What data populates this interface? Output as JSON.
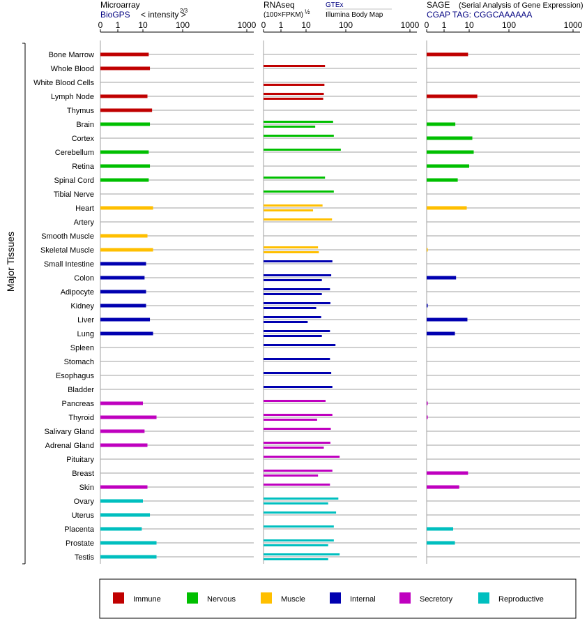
{
  "colors": {
    "Immune": "#c00000",
    "Nervous": "#00bf00",
    "Muscle": "#ffbf00",
    "Internal": "#0000b0",
    "Secretory": "#bf00bf",
    "Reproductive": "#00bfbf"
  },
  "chart_data": {
    "type": "bar",
    "y_axis_label": "Major Tissues",
    "categories": [
      "Bone Marrow",
      "Whole Blood",
      "White Blood Cells",
      "Lymph Node",
      "Thymus",
      "Brain",
      "Cortex",
      "Cerebellum",
      "Retina",
      "Spinal Cord",
      "Tibial Nerve",
      "Heart",
      "Artery",
      "Smooth Muscle",
      "Skeletal Muscle",
      "Small Intestine",
      "Colon",
      "Adipocyte",
      "Kidney",
      "Liver",
      "Lung",
      "Spleen",
      "Stomach",
      "Esophagus",
      "Bladder",
      "Pancreas",
      "Thyroid",
      "Salivary Gland",
      "Adrenal Gland",
      "Pituitary",
      "Breast",
      "Skin",
      "Ovary",
      "Uterus",
      "Placenta",
      "Prostate",
      "Testis"
    ],
    "groups": [
      "Immune",
      "Immune",
      "Immune",
      "Immune",
      "Immune",
      "Nervous",
      "Nervous",
      "Nervous",
      "Nervous",
      "Nervous",
      "Nervous",
      "Muscle",
      "Muscle",
      "Muscle",
      "Muscle",
      "Internal",
      "Internal",
      "Internal",
      "Internal",
      "Internal",
      "Internal",
      "Internal",
      "Internal",
      "Internal",
      "Internal",
      "Secretory",
      "Secretory",
      "Secretory",
      "Secretory",
      "Secretory",
      "Secretory",
      "Secretory",
      "Reproductive",
      "Reproductive",
      "Reproductive",
      "Reproductive",
      "Reproductive"
    ],
    "x_ticks": [
      "0",
      "1",
      "10",
      "100",
      "1000"
    ],
    "legend": [
      "Immune",
      "Nervous",
      "Muscle",
      "Internal",
      "Secretory",
      "Reproductive"
    ],
    "legend_position": "bottom",
    "panels": [
      {
        "title": "Microarray",
        "source": "BioGPS",
        "subtitle": "< intensity >",
        "exponent": "2/3",
        "values": [
          14,
          15,
          null,
          13,
          17,
          15,
          null,
          14,
          15,
          14,
          null,
          18,
          null,
          13,
          18,
          12,
          11,
          12,
          12,
          15,
          18,
          null,
          null,
          null,
          null,
          10,
          22,
          11,
          13,
          null,
          null,
          13,
          10,
          15,
          9,
          22,
          22
        ],
        "values2": []
      },
      {
        "title": "RNAseq",
        "unit": "(100×FPKM)",
        "exponent": "½",
        "source_a": "GTEx",
        "source_b": "Illumina Body Map",
        "values": [
          null,
          30,
          null,
          28,
          null,
          48,
          50,
          75,
          null,
          30,
          50,
          26,
          45,
          null,
          20,
          46,
          43,
          40,
          41,
          24,
          40,
          55,
          40,
          43,
          46,
          31,
          46,
          42,
          41,
          70,
          46,
          40,
          65,
          57,
          50,
          50,
          70
        ],
        "values2": [
          null,
          null,
          29,
          27,
          null,
          17,
          null,
          null,
          null,
          null,
          null,
          15,
          null,
          null,
          21,
          null,
          25,
          25,
          18,
          11,
          25,
          null,
          null,
          null,
          null,
          null,
          19,
          null,
          28,
          null,
          20,
          null,
          36,
          null,
          null,
          36,
          36
        ]
      },
      {
        "title": "SAGE",
        "subtitle": "(Serial Analysis of Gene Expression)",
        "source": "CGAP TAG: CGGCAAAAAA",
        "values": [
          9,
          null,
          null,
          16,
          null,
          2.8,
          12,
          13,
          10,
          3.5,
          null,
          8,
          null,
          null,
          0.015,
          null,
          3,
          null,
          0.05,
          8.5,
          2.7,
          null,
          null,
          null,
          null,
          0.03,
          0.03,
          null,
          null,
          null,
          9,
          4,
          null,
          null,
          2.3,
          2.7,
          null
        ],
        "values2": []
      }
    ]
  }
}
